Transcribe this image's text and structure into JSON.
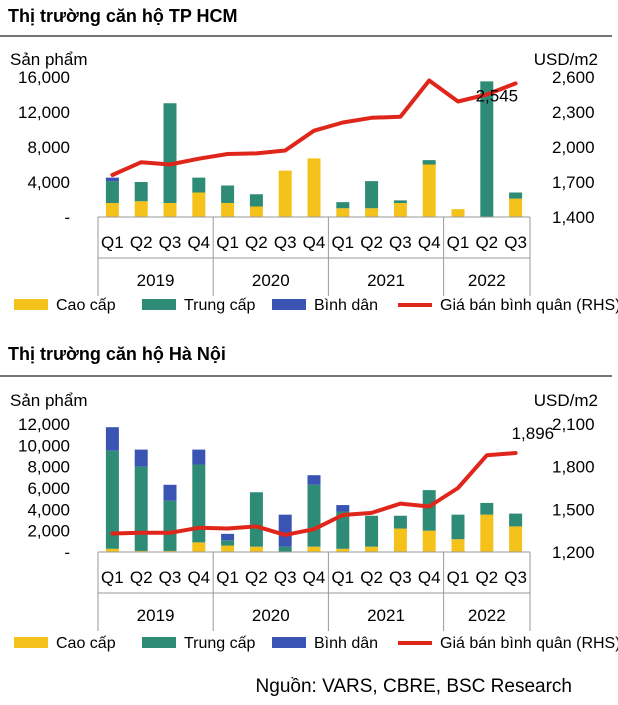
{
  "source": "Nguồn: VARS, CBRE, BSC Research",
  "colors": {
    "cao_cap": "#F5C21B",
    "trung_cap": "#2E8B76",
    "binh_dan": "#3A54B4",
    "price": "#E0261B"
  },
  "chart_data": [
    {
      "type": "bar",
      "title": "Thị trường căn hộ TP HCM",
      "ylabel": "Sản phẩm",
      "y2label": "USD/m2",
      "ylim": [
        0,
        16000
      ],
      "y2lim": [
        1400,
        2600
      ],
      "yticks": [
        "-",
        "4,000",
        "8,000",
        "12,000",
        "16,000"
      ],
      "y2ticks": [
        "1,400",
        "1,700",
        "2,000",
        "2,300",
        "2,600"
      ],
      "categories": [
        "Q1",
        "Q2",
        "Q3",
        "Q4",
        "Q1",
        "Q2",
        "Q3",
        "Q4",
        "Q1",
        "Q2",
        "Q3",
        "Q4",
        "Q1",
        "Q2",
        "Q3"
      ],
      "years": [
        "2019",
        "2020",
        "2021",
        "2022"
      ],
      "legend": [
        "Cao cấp",
        "Trung cấp",
        "Bình dân",
        "Giá bán bình quân (RHS)"
      ],
      "series": [
        {
          "name": "Cao cấp",
          "values": [
            1600,
            1800,
            1600,
            2800,
            1600,
            1200,
            5300,
            6700,
            1000,
            1000,
            1600,
            6000,
            900,
            0,
            2100
          ]
        },
        {
          "name": "Trung cấp",
          "values": [
            2500,
            2200,
            11400,
            1700,
            2000,
            1400,
            0,
            0,
            700,
            3100,
            300,
            500,
            0,
            15500,
            700
          ]
        },
        {
          "name": "Bình dân",
          "values": [
            400,
            0,
            0,
            0,
            0,
            0,
            0,
            0,
            0,
            0,
            0,
            0,
            0,
            0,
            0
          ]
        },
        {
          "name": "Giá bán bình quân (RHS)",
          "axis": "right",
          "values": [
            1760,
            1870,
            1850,
            1900,
            1940,
            1945,
            1970,
            2140,
            2210,
            2250,
            2260,
            2570,
            2390,
            2450,
            2545
          ]
        }
      ],
      "annotation": "2,545"
    },
    {
      "type": "bar",
      "title": "Thị trường căn hộ Hà Nội",
      "ylabel": "Sản phẩm",
      "y2label": "USD/m2",
      "ylim": [
        0,
        12000
      ],
      "y2lim": [
        1200,
        2100
      ],
      "yticks": [
        "-",
        "2,000",
        "4,000",
        "6,000",
        "8,000",
        "10,000",
        "12,000"
      ],
      "y2ticks": [
        "1,200",
        "1,500",
        "1,800",
        "2,100"
      ],
      "categories": [
        "Q1",
        "Q2",
        "Q3",
        "Q4",
        "Q1",
        "Q2",
        "Q3",
        "Q4",
        "Q1",
        "Q2",
        "Q3",
        "Q4",
        "Q1",
        "Q2",
        "Q3"
      ],
      "years": [
        "2019",
        "2020",
        "2021",
        "2022"
      ],
      "legend": [
        "Cao cấp",
        "Trung cấp",
        "Bình dân",
        "Giá bán bình quân (RHS)"
      ],
      "series": [
        {
          "name": "Cao cấp",
          "values": [
            300,
            100,
            100,
            900,
            600,
            500,
            0,
            500,
            300,
            500,
            2200,
            2000,
            1200,
            3500,
            2400
          ]
        },
        {
          "name": "Trung cấp",
          "values": [
            9200,
            7900,
            4700,
            7300,
            500,
            5100,
            500,
            5800,
            3500,
            2900,
            1200,
            3800,
            2300,
            1100,
            1200
          ]
        },
        {
          "name": "Bình dân",
          "values": [
            2200,
            1600,
            1500,
            1400,
            600,
            0,
            3000,
            900,
            600,
            0,
            0,
            0,
            0,
            0,
            0
          ]
        },
        {
          "name": "Giá bán bình quân (RHS)",
          "axis": "right",
          "values": [
            1330,
            1335,
            1335,
            1370,
            1365,
            1380,
            1320,
            1360,
            1460,
            1475,
            1540,
            1520,
            1650,
            1880,
            1896
          ]
        }
      ],
      "annotation": "1,896"
    }
  ]
}
